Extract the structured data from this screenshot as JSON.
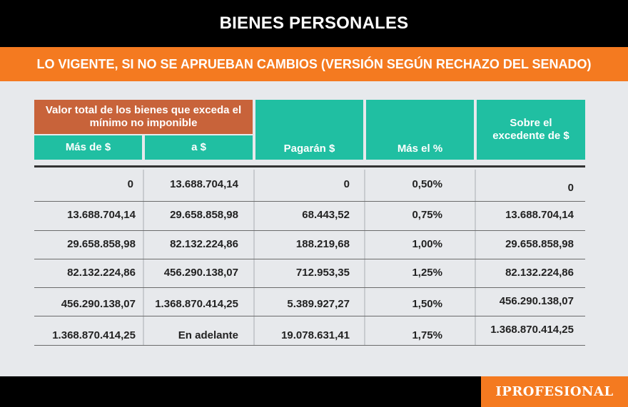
{
  "title": "BIENES PERSONALES",
  "subtitle": "LO VIGENTE, SI NO SE APRUEBAN CAMBIOS (VERSIÓN SEGÚN RECHAZO DEL SENADO)",
  "header": {
    "group": "Valor total de los bienes que exceda el mínimo no imponible",
    "mas_de": "Más de $",
    "a": "a $",
    "pagaran": "Pagarán $",
    "mas_el": "Más el %",
    "sobre": "Sobre el excedente de $"
  },
  "rows": [
    {
      "mas_de": "0",
      "a": "13.688.704,14",
      "pagaran": "0",
      "pct": "0,50%",
      "sobre": "0"
    },
    {
      "mas_de": "13.688.704,14",
      "a": "29.658.858,98",
      "pagaran": "68.443,52",
      "pct": "0,75%",
      "sobre": "13.688.704,14"
    },
    {
      "mas_de": "29.658.858,98",
      "a": "82.132.224,86",
      "pagaran": "188.219,68",
      "pct": "1,00%",
      "sobre": "29.658.858,98"
    },
    {
      "mas_de": "82.132.224,86",
      "a": "456.290.138,07",
      "pagaran": "712.953,35",
      "pct": "1,25%",
      "sobre": "82.132.224,86"
    },
    {
      "mas_de": "456.290.138,07",
      "a": "1.368.870.414,25",
      "pagaran": "5.389.927,27",
      "pct": "1,50%",
      "sobre": "456.290.138,07"
    },
    {
      "mas_de": "1.368.870.414,25",
      "a": "En adelante",
      "pagaran": "19.078.631,41",
      "pct": "1,75%",
      "sobre": "1.368.870.414,25"
    }
  ],
  "footer": {
    "logo": "IPROFESIONAL"
  },
  "colors": {
    "orange": "#f47a20",
    "teal": "#20bfa2",
    "rust": "#c8633a",
    "background": "#e7e9ec"
  }
}
